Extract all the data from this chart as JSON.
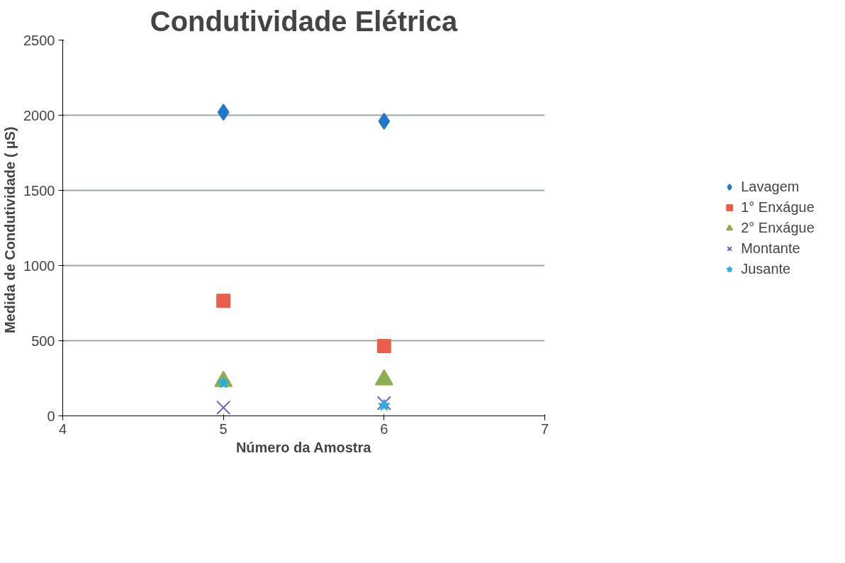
{
  "chart_data": {
    "type": "scatter",
    "title": "Condutividade Elétrica",
    "xlabel": "Número da Amostra",
    "ylabel": "Medida de Condutividade  ( µS)",
    "xlim": [
      4,
      7
    ],
    "xticks": [
      4,
      5,
      6,
      7
    ],
    "ylim": [
      0,
      2500
    ],
    "yticks": [
      0,
      500,
      1000,
      1500,
      2000,
      2500
    ],
    "grid": "y",
    "legend": "right",
    "x": [
      5,
      6
    ],
    "series": [
      {
        "name": "Lavagem",
        "color": "#1f78c8",
        "marker": "diamond",
        "values": [
          2020,
          1960
        ]
      },
      {
        "name": "1° Enxágue",
        "color": "#e8604c",
        "marker": "square",
        "values": [
          765,
          465
        ]
      },
      {
        "name": "2° Enxágue",
        "color": "#8cb050",
        "marker": "triangle",
        "values": [
          230,
          240
        ]
      },
      {
        "name": "Montante",
        "color": "#7a5cc8",
        "marker": "cross",
        "values": [
          55,
          85
        ]
      },
      {
        "name": "Jusante",
        "color": "#2aaee0",
        "marker": "star",
        "values": [
          220,
          70
        ]
      }
    ]
  }
}
